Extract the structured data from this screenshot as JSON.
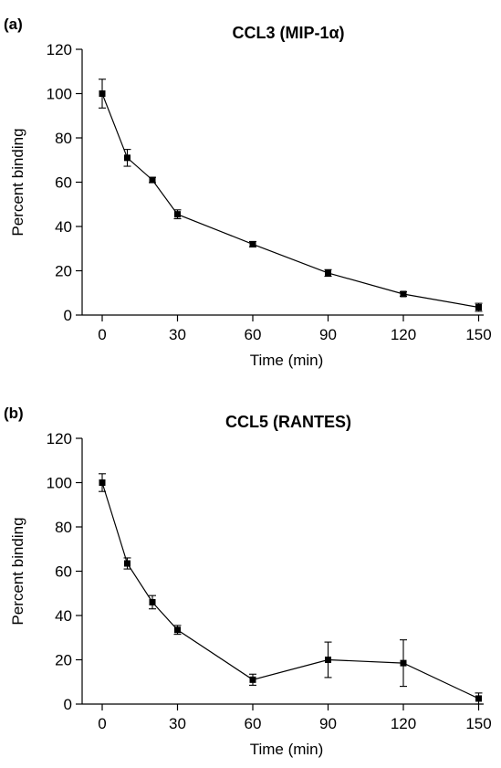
{
  "chart_data": [
    {
      "type": "line",
      "panel": "(a)",
      "title": "CCL3 (MIP-1α)",
      "xlabel": "Time (min)",
      "ylabel": "Percent binding",
      "xlim": [
        -8,
        152
      ],
      "ylim": [
        0,
        120
      ],
      "xticks": [
        0,
        30,
        60,
        90,
        120,
        150
      ],
      "yticks": [
        0,
        20,
        40,
        60,
        80,
        100,
        120
      ],
      "x": [
        0,
        10,
        20,
        30,
        60,
        90,
        120,
        150
      ],
      "series": [
        {
          "values": [
            100,
            71,
            61,
            45.5,
            32,
            19,
            9.5,
            3.5
          ],
          "error": [
            6.5,
            3.8,
            1.2,
            2,
            1.2,
            1.5,
            1,
            1.8
          ]
        }
      ]
    },
    {
      "type": "line",
      "panel": "(b)",
      "title": "CCL5 (RANTES)",
      "xlabel": "Time (min)",
      "ylabel": "Percent binding",
      "xlim": [
        -8,
        152
      ],
      "ylim": [
        0,
        120
      ],
      "xticks": [
        0,
        30,
        60,
        90,
        120,
        150
      ],
      "yticks": [
        0,
        20,
        40,
        60,
        80,
        100,
        120
      ],
      "x": [
        0,
        10,
        20,
        30,
        60,
        90,
        120,
        150
      ],
      "series": [
        {
          "values": [
            100,
            63.5,
            46,
            33.5,
            11,
            20,
            18.5,
            2.5
          ],
          "error": [
            4,
            2.5,
            3,
            2,
            2.5,
            8,
            10.5,
            2.5
          ]
        }
      ]
    }
  ]
}
